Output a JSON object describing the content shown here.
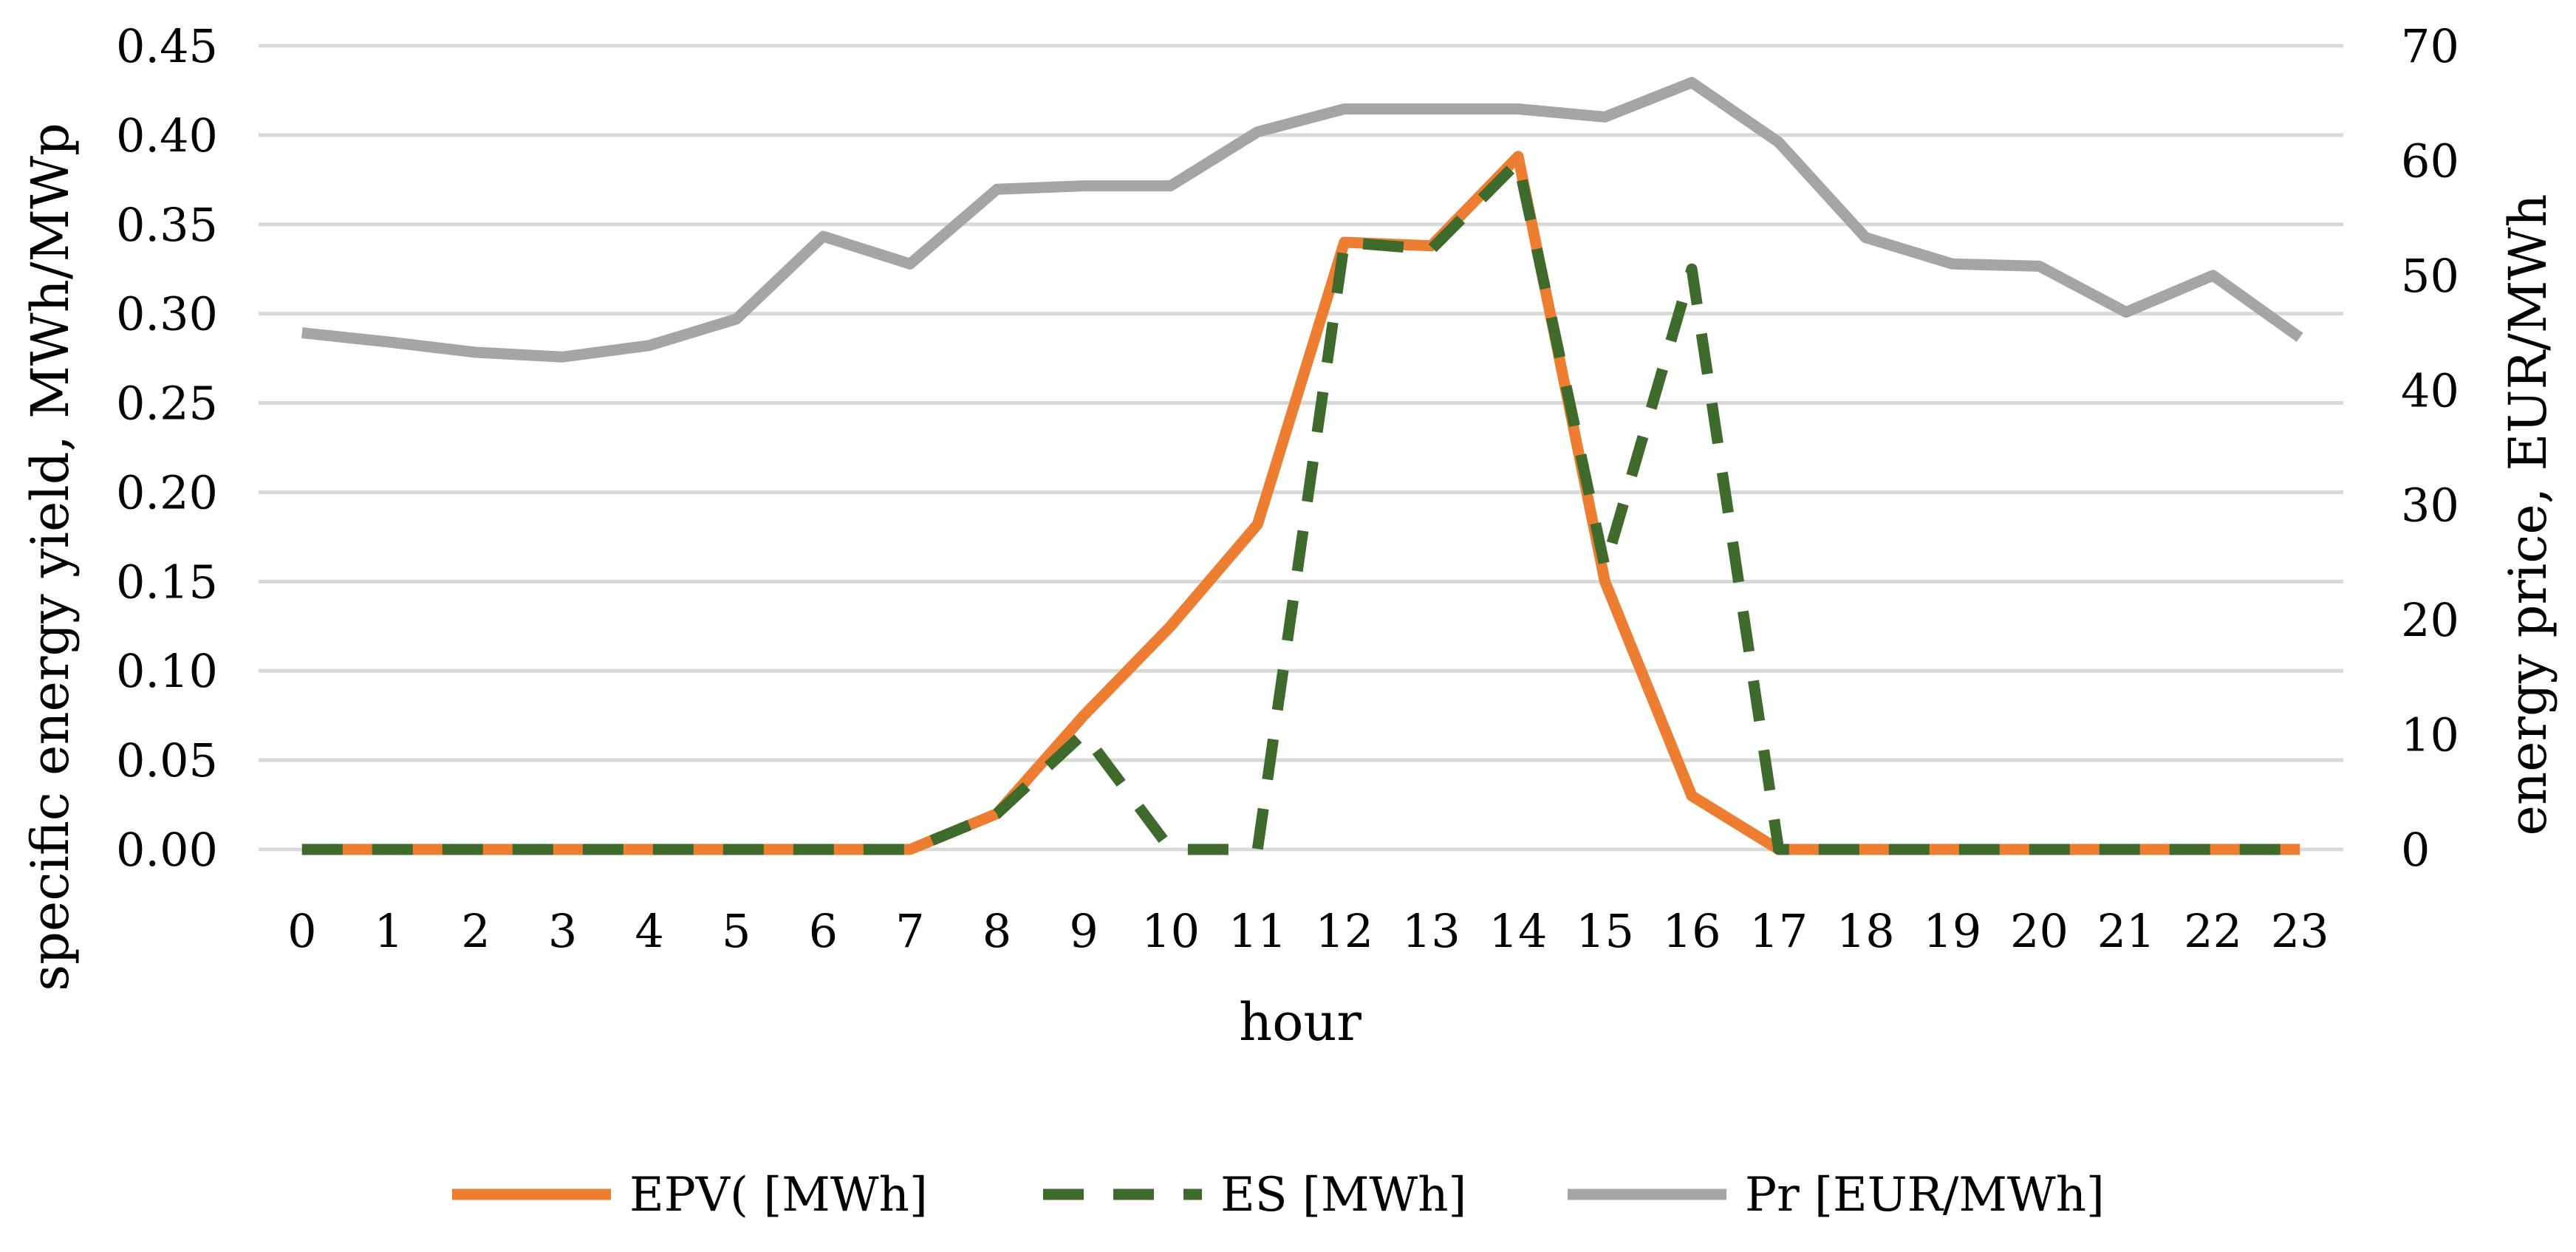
{
  "chart_data": {
    "type": "line",
    "title": "",
    "xlabel": "hour",
    "ylabel_left": "specific energy yield, MWh/MWp",
    "ylabel_right": "energy price, EUR/MWh",
    "categories": [
      "0",
      "1",
      "2",
      "3",
      "4",
      "5",
      "6",
      "7",
      "8",
      "9",
      "10",
      "11",
      "12",
      "13",
      "14",
      "15",
      "16",
      "17",
      "18",
      "19",
      "20",
      "21",
      "22",
      "23"
    ],
    "y_left": {
      "range": [
        0,
        0.45
      ],
      "ticks": [
        "0.00",
        "0.05",
        "0.10",
        "0.15",
        "0.20",
        "0.25",
        "0.30",
        "0.35",
        "0.40",
        "0.45"
      ]
    },
    "y_right": {
      "range": [
        0,
        70
      ],
      "ticks": [
        "0",
        "10",
        "20",
        "30",
        "40",
        "50",
        "60",
        "70"
      ]
    },
    "grid": true,
    "legend_position": "bottom",
    "series": [
      {
        "name": "EPV( [MWh]",
        "axis": "left",
        "color": "#ED7D31",
        "style": "solid",
        "values": [
          0,
          0,
          0,
          0,
          0,
          0,
          0,
          0,
          0.02,
          0.075,
          0.125,
          0.182,
          0.34,
          0.338,
          0.388,
          0.15,
          0.03,
          0,
          0,
          0,
          0,
          0,
          0,
          0
        ]
      },
      {
        "name": "ES [MWh]",
        "axis": "left",
        "color": "#3E6A2C",
        "style": "dashed",
        "values": [
          0,
          0,
          0,
          0,
          0,
          0,
          0,
          0,
          0.02,
          0.065,
          0,
          0,
          0.34,
          0.336,
          0.385,
          0.158,
          0.325,
          0,
          0,
          0,
          0,
          0,
          0,
          0
        ]
      },
      {
        "name": "Pr [EUR/MWh]",
        "axis": "right",
        "color": "#A5A5A5",
        "style": "solid",
        "values": [
          45,
          44.2,
          43.3,
          42.9,
          43.9,
          46.2,
          53.4,
          51,
          57.5,
          57.8,
          57.8,
          62.5,
          64.5,
          64.5,
          64.5,
          63.8,
          66.8,
          61.6,
          53.3,
          51,
          50.8,
          46.8,
          50,
          44.6
        ]
      }
    ]
  }
}
